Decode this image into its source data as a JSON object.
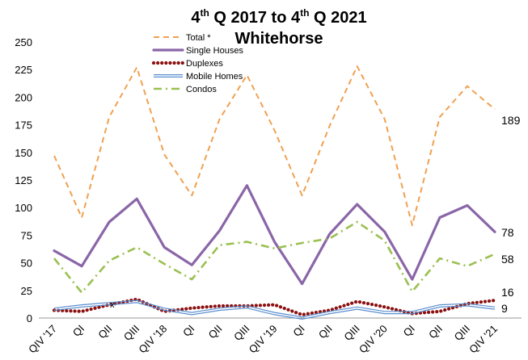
{
  "chart_data": {
    "type": "line",
    "title_main": "4",
    "title_sup": "th",
    "title_mid": " Q 2017 to 4",
    "title_sup2": "th",
    "title_end": " Q 2021",
    "subtitle": "Whitehorse",
    "categories": [
      "QIV '17",
      "QI",
      "QII",
      "QIII",
      "QIV '18",
      "QI",
      "QII",
      "QIII",
      "QIV '19",
      "QI",
      "QII",
      "QIII",
      "QIV '20",
      "QI",
      "QII",
      "QIII",
      "QIV '21"
    ],
    "ylim": [
      0,
      250
    ],
    "yticks": [
      0,
      25,
      50,
      75,
      100,
      125,
      150,
      175,
      200,
      225,
      250
    ],
    "annotation_x": "x",
    "series": [
      {
        "name": "Total *",
        "color": "#f0a050",
        "style": "dashed",
        "values": [
          147,
          91,
          182,
          227,
          148,
          111,
          180,
          220,
          170,
          111,
          174,
          228,
          180,
          84,
          182,
          210,
          189
        ]
      },
      {
        "name": "Single Houses",
        "color": "#8a66a8",
        "style": "solid",
        "values": [
          61,
          47,
          87,
          108,
          64,
          48,
          79,
          120,
          69,
          31,
          76,
          103,
          78,
          35,
          91,
          102,
          78
        ]
      },
      {
        "name": "Duplexes",
        "color": "#8b1010",
        "style": "dotted",
        "values": [
          7,
          6,
          12,
          17,
          6,
          9,
          11,
          11,
          12,
          3,
          7,
          15,
          10,
          4,
          6,
          13,
          16
        ]
      },
      {
        "name": "Mobile Homes",
        "color": "#5b8fd0",
        "style": "double",
        "values": [
          8,
          11,
          13,
          15,
          8,
          4,
          8,
          10,
          4,
          0,
          5,
          9,
          5,
          5,
          11,
          12,
          9
        ]
      },
      {
        "name": "Condos",
        "color": "#9ac050",
        "style": "dashdot",
        "values": [
          54,
          23,
          52,
          64,
          49,
          35,
          66,
          69,
          63,
          68,
          72,
          87,
          70,
          24,
          54,
          47,
          58
        ]
      }
    ],
    "end_labels": [
      "189",
      "78",
      "58",
      "16",
      "9"
    ]
  }
}
